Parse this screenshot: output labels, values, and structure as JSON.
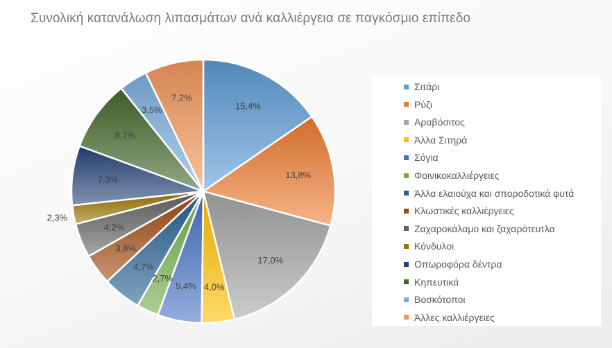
{
  "chart_data": {
    "type": "pie",
    "title": "Συνολική κατανάλωση λιπασμάτων ανά καλλιέργεια σε παγκόσμιο επίπεδο",
    "legend_position": "right",
    "start_angle_deg": 0,
    "direction": "clockwise",
    "categories": [
      "Σιτάρι",
      "Ρύζι",
      "Αραβόσιτος",
      "Άλλα Σιτηρά",
      "Σόγια",
      "Φοινικοκαλλιέργειες",
      "Άλλα ελαιούχα και σποροδοτικά φυτά",
      "Κλωστικές καλλιέργειες",
      "Ζαχαροκάλαμο και ζαχαρότευτλα",
      "Κόνδυλοι",
      "Οπωροφόρα δέντρα",
      "Κηπευτικά",
      "Βοσκότοποι",
      "Άλλες καλλιέργειες"
    ],
    "values": [
      15.4,
      13.8,
      17.0,
      4.0,
      5.4,
      2.7,
      4.7,
      3.8,
      4.2,
      2.3,
      7.3,
      8.7,
      3.5,
      7.2
    ],
    "data_labels": [
      "15,4%",
      "13,8%",
      "17,0%",
      "4,0%",
      "5,4%",
      "2,7%",
      "4,7%",
      "3,8%",
      "4,2%",
      "2,3%",
      "7,3%",
      "8,7%",
      "3,5%",
      "7,2%"
    ],
    "colors": [
      "#5b9bd5",
      "#ed7d31",
      "#a5a5a5",
      "#ffc000",
      "#4472c4",
      "#70ad47",
      "#255e91",
      "#9e480e",
      "#636363",
      "#997300",
      "#264478",
      "#43682b",
      "#7cafdd",
      "#f1975a"
    ]
  }
}
